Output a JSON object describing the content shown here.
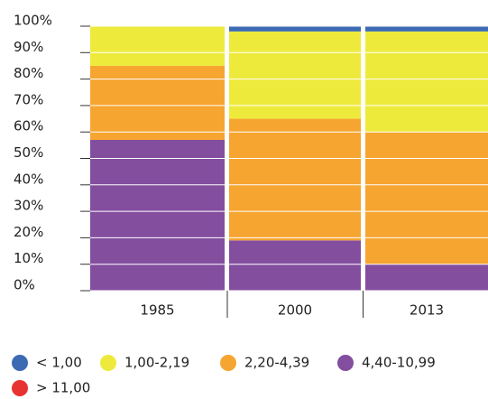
{
  "chart_data": {
    "type": "stacked-bar",
    "categories": [
      "1985",
      "2000",
      "2013"
    ],
    "series": [
      {
        "name": "< 1,00",
        "color": "#3d6bb3",
        "values": [
          0,
          2,
          2
        ]
      },
      {
        "name": "1,00-2,19",
        "color": "#eeea3c",
        "values": [
          15,
          33,
          38
        ]
      },
      {
        "name": "2,20-4,39",
        "color": "#f6a531",
        "values": [
          28,
          46,
          50
        ]
      },
      {
        "name": "4,40-10,99",
        "color": "#844e9f",
        "values": [
          57,
          19,
          10
        ]
      },
      {
        "name": "> 11,00",
        "color": "#e83333",
        "values": [
          0,
          0,
          0
        ]
      }
    ],
    "ylim": [
      0,
      100
    ],
    "yticks": [
      {
        "value": 0,
        "label": "0%"
      },
      {
        "value": 10,
        "label": "10%"
      },
      {
        "value": 20,
        "label": "20%"
      },
      {
        "value": 30,
        "label": "30%"
      },
      {
        "value": 40,
        "label": "40%"
      },
      {
        "value": 50,
        "label": "50%"
      },
      {
        "value": 60,
        "label": "60%"
      },
      {
        "value": 70,
        "label": "70%"
      },
      {
        "value": 80,
        "label": "80%"
      },
      {
        "value": 90,
        "label": "90%"
      },
      {
        "value": 100,
        "label": "100%"
      }
    ],
    "grid": true
  }
}
